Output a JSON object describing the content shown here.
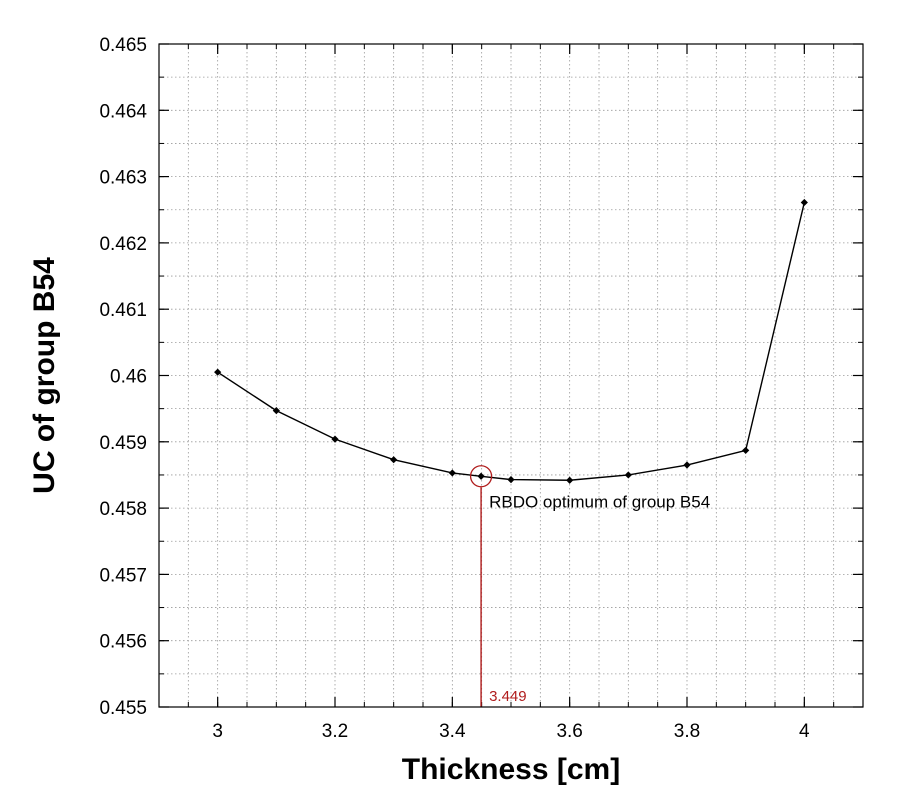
{
  "chart_data": {
    "type": "line",
    "title": "",
    "xlabel": "Thickness [cm]",
    "ylabel": "UC of group B54",
    "xlim": [
      2.9,
      4.1
    ],
    "ylim": [
      0.455,
      0.465
    ],
    "grid": true,
    "x_ticks": [
      3,
      3.2,
      3.4,
      3.6,
      3.8,
      4
    ],
    "x_tick_labels": [
      "3",
      "3.2",
      "3.4",
      "3.6",
      "3.8",
      "4"
    ],
    "x_minor_step": 0.05,
    "y_ticks": [
      0.455,
      0.456,
      0.457,
      0.458,
      0.459,
      0.46,
      0.461,
      0.462,
      0.463,
      0.464,
      0.465
    ],
    "y_tick_labels": [
      "0.455",
      "0.456",
      "0.457",
      "0.458",
      "0.459",
      "0.46",
      "0.461",
      "0.462",
      "0.463",
      "0.464",
      "0.465"
    ],
    "y_minor_step": 0.0005,
    "series": [
      {
        "name": "UC",
        "color": "#000000",
        "x": [
          3.0,
          3.1,
          3.2,
          3.3,
          3.4,
          3.449,
          3.5,
          3.6,
          3.7,
          3.8,
          3.9,
          4.0
        ],
        "y": [
          0.46005,
          0.45947,
          0.45904,
          0.45873,
          0.45853,
          0.45848,
          0.45843,
          0.45842,
          0.4585,
          0.45865,
          0.45887,
          0.46261
        ]
      }
    ],
    "annotations": [
      {
        "kind": "optimum",
        "label": "RBDO optimum of group B54",
        "x": 3.449,
        "y": 0.45848,
        "value_label": "3.449",
        "color": "#b01c1c"
      }
    ]
  }
}
